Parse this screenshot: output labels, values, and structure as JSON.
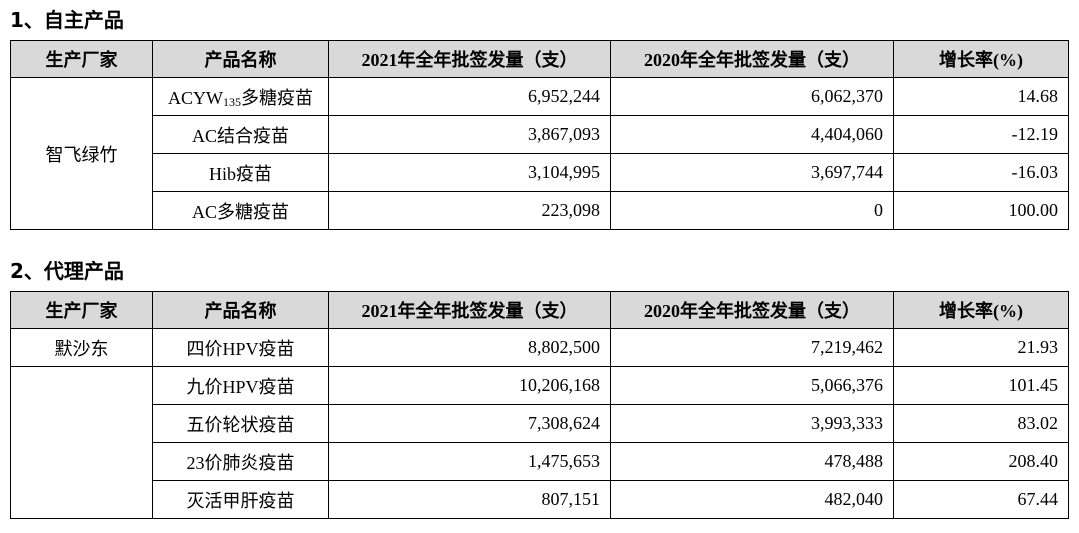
{
  "sections": [
    {
      "title": "1、自主产品",
      "headers": [
        "生产厂家",
        "产品名称",
        "2021年全年批签发量（支）",
        "2020年全年批签发量（支）",
        "增长率(%)"
      ],
      "groups": [
        {
          "maker": "智飞绿竹",
          "rows": [
            [
              {
                "base": "ACYW",
                "sub": "135",
                "tail": "多糖疫苗"
              },
              "6,952,244",
              "6,062,370",
              "14.68"
            ],
            [
              "AC结合疫苗",
              "3,867,093",
              "4,404,060",
              "-12.19"
            ],
            [
              "Hib疫苗",
              "3,104,995",
              "3,697,744",
              "-16.03"
            ],
            [
              "AC多糖疫苗",
              "223,098",
              "0",
              "100.00"
            ]
          ]
        }
      ]
    },
    {
      "title": "2、代理产品",
      "headers": [
        "生产厂家",
        "产品名称",
        "2021年全年批签发量（支）",
        "2020年全年批签发量（支）",
        "增长率(%)"
      ],
      "groups": [
        {
          "maker": "默沙东",
          "rows": [
            [
              "四价HPV疫苗",
              "8,802,500",
              "7,219,462",
              "21.93"
            ]
          ]
        },
        {
          "rows": [
            [
              "九价HPV疫苗",
              "10,206,168",
              "5,066,376",
              "101.45"
            ],
            [
              "五价轮状疫苗",
              "7,308,624",
              "3,993,333",
              "83.02"
            ],
            [
              "23价肺炎疫苗",
              "1,475,653",
              "478,488",
              "208.40"
            ],
            [
              "灭活甲肝疫苗",
              "807,151",
              "482,040",
              "67.44"
            ]
          ]
        }
      ]
    }
  ]
}
